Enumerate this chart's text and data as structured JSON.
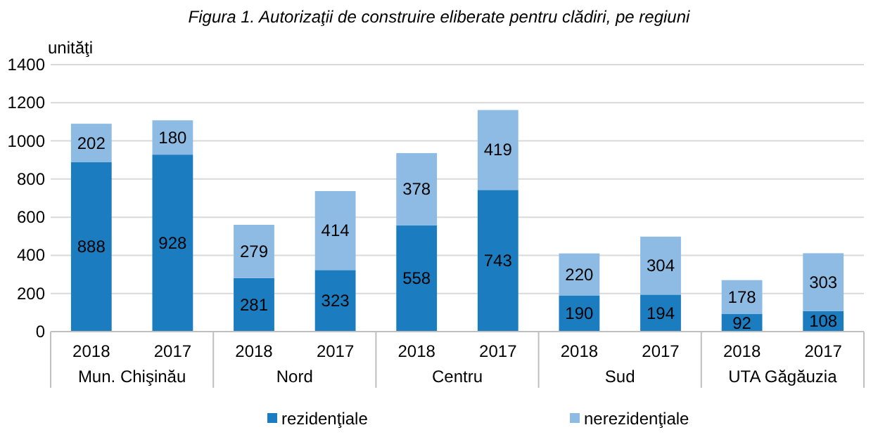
{
  "chart_data": {
    "type": "bar",
    "title": "Figura 1. Autorizaţii de construire eliberate pentru clădiri, pe regiuni",
    "ylabel": "unităţi",
    "categories": [
      "2018",
      "2017",
      "2018",
      "2017",
      "2018",
      "2017",
      "2018",
      "2017",
      "2018",
      "2017"
    ],
    "annotations": [
      "Mun. Chişinău",
      "Nord",
      "Centru",
      "Sud",
      "UTA Găgăuzia"
    ],
    "stacked": true,
    "data_labels": true,
    "grid": "y",
    "legend": "bottom",
    "ylim": [
      0,
      1400
    ],
    "yticks": [
      0,
      200,
      400,
      600,
      800,
      1000,
      1200,
      1400
    ],
    "series": [
      {
        "name": "rezidenţiale",
        "color": "#1b7cc0",
        "values": [
          888,
          928,
          281,
          323,
          558,
          743,
          190,
          194,
          92,
          108
        ]
      },
      {
        "name": "nerezidenţiale",
        "color": "#8dbbe3",
        "values": [
          202,
          180,
          279,
          414,
          378,
          419,
          220,
          304,
          178,
          303
        ]
      }
    ]
  }
}
